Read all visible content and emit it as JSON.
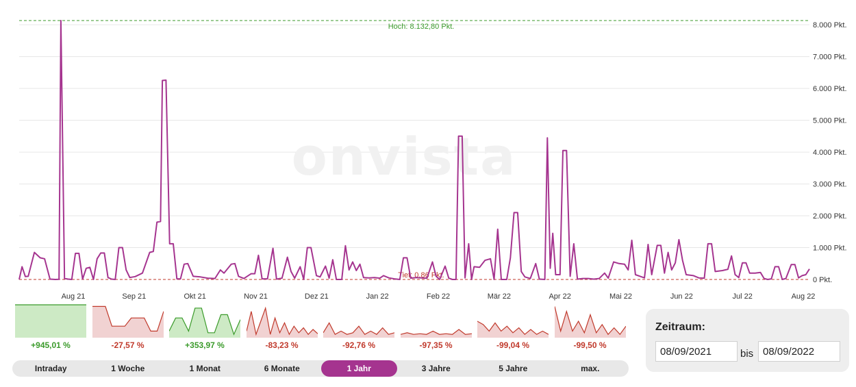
{
  "chart_data": {
    "type": "line",
    "watermark": "onvista",
    "y_ticks": [
      "8.000 Pkt.",
      "7.000 Pkt.",
      "6.000 Pkt.",
      "5.000 Pkt.",
      "4.000 Pkt.",
      "3.000 Pkt.",
      "2.000 Pkt.",
      "1.000 Pkt.",
      "0 Pkt."
    ],
    "y_tick_values": [
      8000,
      7000,
      6000,
      5000,
      4000,
      3000,
      2000,
      1000,
      0
    ],
    "ylim": [
      0,
      8132.8
    ],
    "x_ticks": [
      "Aug 21",
      "Sep 21",
      "Okt 21",
      "Nov 21",
      "Dez 21",
      "Jan 22",
      "Feb 22",
      "Mär 22",
      "Apr 22",
      "Mai 22",
      "Jun 22",
      "Jul 22",
      "Aug 22"
    ],
    "high_label": "Hoch: 8.132,80 Pkt.",
    "low_label": "Tief: 0,86 Pkt.",
    "high_value": 8132.8,
    "low_value": 0.86,
    "line_color": "#a5348f",
    "high_color": "#3a9a2a",
    "low_color": "#c0392b",
    "series": [
      {
        "x": 0,
        "y": 0
      },
      {
        "x": 0.08,
        "y": 400
      },
      {
        "x": 0.17,
        "y": 90
      },
      {
        "x": 0.25,
        "y": 100
      },
      {
        "x": 0.42,
        "y": 850
      },
      {
        "x": 0.58,
        "y": 680
      },
      {
        "x": 0.7,
        "y": 650
      },
      {
        "x": 0.85,
        "y": 10
      },
      {
        "x": 1.0,
        "y": 0
      },
      {
        "x": 1.1,
        "y": 5
      },
      {
        "x": 1.15,
        "y": 8132.8
      },
      {
        "x": 1.25,
        "y": 30
      },
      {
        "x": 1.35,
        "y": 10
      },
      {
        "x": 1.45,
        "y": 0
      },
      {
        "x": 1.55,
        "y": 820
      },
      {
        "x": 1.65,
        "y": 820
      },
      {
        "x": 1.75,
        "y": 10
      },
      {
        "x": 1.85,
        "y": 350
      },
      {
        "x": 1.95,
        "y": 380
      },
      {
        "x": 2.05,
        "y": 0
      },
      {
        "x": 2.15,
        "y": 650
      },
      {
        "x": 2.25,
        "y": 830
      },
      {
        "x": 2.35,
        "y": 830
      },
      {
        "x": 2.45,
        "y": 60
      },
      {
        "x": 2.55,
        "y": 10
      },
      {
        "x": 2.65,
        "y": 0
      },
      {
        "x": 2.75,
        "y": 1000
      },
      {
        "x": 2.85,
        "y": 1000
      },
      {
        "x": 2.95,
        "y": 300
      },
      {
        "x": 3.05,
        "y": 60
      },
      {
        "x": 3.2,
        "y": 90
      },
      {
        "x": 3.4,
        "y": 200
      },
      {
        "x": 3.6,
        "y": 850
      },
      {
        "x": 3.7,
        "y": 880
      },
      {
        "x": 3.8,
        "y": 1800
      },
      {
        "x": 3.9,
        "y": 1820
      },
      {
        "x": 3.95,
        "y": 6250
      },
      {
        "x": 4.05,
        "y": 6260
      },
      {
        "x": 4.15,
        "y": 1120
      },
      {
        "x": 4.25,
        "y": 1120
      },
      {
        "x": 4.35,
        "y": 20
      },
      {
        "x": 4.45,
        "y": 20
      },
      {
        "x": 4.55,
        "y": 480
      },
      {
        "x": 4.65,
        "y": 500
      },
      {
        "x": 4.8,
        "y": 100
      },
      {
        "x": 5.0,
        "y": 80
      },
      {
        "x": 5.2,
        "y": 40
      },
      {
        "x": 5.4,
        "y": 30
      },
      {
        "x": 5.55,
        "y": 300
      },
      {
        "x": 5.65,
        "y": 200
      },
      {
        "x": 5.85,
        "y": 480
      },
      {
        "x": 5.95,
        "y": 500
      },
      {
        "x": 6.05,
        "y": 100
      },
      {
        "x": 6.2,
        "y": 30
      },
      {
        "x": 6.4,
        "y": 180
      },
      {
        "x": 6.5,
        "y": 180
      },
      {
        "x": 6.6,
        "y": 760
      },
      {
        "x": 6.7,
        "y": 20
      },
      {
        "x": 6.85,
        "y": 20
      },
      {
        "x": 7.0,
        "y": 980
      },
      {
        "x": 7.1,
        "y": 10
      },
      {
        "x": 7.25,
        "y": 40
      },
      {
        "x": 7.4,
        "y": 700
      },
      {
        "x": 7.5,
        "y": 250
      },
      {
        "x": 7.6,
        "y": 40
      },
      {
        "x": 7.75,
        "y": 400
      },
      {
        "x": 7.85,
        "y": 0
      },
      {
        "x": 7.95,
        "y": 1000
      },
      {
        "x": 8.05,
        "y": 1000
      },
      {
        "x": 8.2,
        "y": 120
      },
      {
        "x": 8.3,
        "y": 80
      },
      {
        "x": 8.45,
        "y": 420
      },
      {
        "x": 8.55,
        "y": 40
      },
      {
        "x": 8.65,
        "y": 620
      },
      {
        "x": 8.75,
        "y": 0
      },
      {
        "x": 8.9,
        "y": 0
      },
      {
        "x": 9.0,
        "y": 1060
      },
      {
        "x": 9.1,
        "y": 300
      },
      {
        "x": 9.2,
        "y": 550
      },
      {
        "x": 9.3,
        "y": 280
      },
      {
        "x": 9.4,
        "y": 480
      },
      {
        "x": 9.5,
        "y": 60
      },
      {
        "x": 9.65,
        "y": 50
      },
      {
        "x": 9.8,
        "y": 60
      },
      {
        "x": 9.95,
        "y": 40
      },
      {
        "x": 10.05,
        "y": 120
      },
      {
        "x": 10.2,
        "y": 50
      },
      {
        "x": 10.35,
        "y": 20
      },
      {
        "x": 10.5,
        "y": 0
      },
      {
        "x": 10.6,
        "y": 680
      },
      {
        "x": 10.7,
        "y": 680
      },
      {
        "x": 10.8,
        "y": 40
      },
      {
        "x": 10.95,
        "y": 60
      },
      {
        "x": 11.1,
        "y": 50
      },
      {
        "x": 11.25,
        "y": 40
      },
      {
        "x": 11.4,
        "y": 550
      },
      {
        "x": 11.5,
        "y": 100
      },
      {
        "x": 11.6,
        "y": 0
      },
      {
        "x": 11.75,
        "y": 420
      },
      {
        "x": 11.85,
        "y": 40
      },
      {
        "x": 11.95,
        "y": 0
      },
      {
        "x": 12.05,
        "y": 0
      },
      {
        "x": 12.12,
        "y": 4500
      },
      {
        "x": 12.22,
        "y": 4500
      },
      {
        "x": 12.3,
        "y": 50
      },
      {
        "x": 12.4,
        "y": 1120
      },
      {
        "x": 12.48,
        "y": 0
      },
      {
        "x": 12.55,
        "y": 400
      },
      {
        "x": 12.7,
        "y": 380
      },
      {
        "x": 12.85,
        "y": 600
      },
      {
        "x": 13.0,
        "y": 650
      },
      {
        "x": 13.1,
        "y": 0
      },
      {
        "x": 13.2,
        "y": 1580
      },
      {
        "x": 13.3,
        "y": 0
      },
      {
        "x": 13.45,
        "y": 0
      },
      {
        "x": 13.55,
        "y": 680
      },
      {
        "x": 13.65,
        "y": 2100
      },
      {
        "x": 13.75,
        "y": 2100
      },
      {
        "x": 13.85,
        "y": 250
      },
      {
        "x": 13.95,
        "y": 80
      },
      {
        "x": 14.1,
        "y": 30
      },
      {
        "x": 14.25,
        "y": 500
      },
      {
        "x": 14.35,
        "y": 10
      },
      {
        "x": 14.5,
        "y": 0
      },
      {
        "x": 14.57,
        "y": 4450
      },
      {
        "x": 14.65,
        "y": 350
      },
      {
        "x": 14.72,
        "y": 1450
      },
      {
        "x": 14.8,
        "y": 150
      },
      {
        "x": 14.92,
        "y": 150
      },
      {
        "x": 15.0,
        "y": 4050
      },
      {
        "x": 15.1,
        "y": 4050
      },
      {
        "x": 15.2,
        "y": 100
      },
      {
        "x": 15.3,
        "y": 1120
      },
      {
        "x": 15.4,
        "y": 10
      },
      {
        "x": 15.55,
        "y": 30
      },
      {
        "x": 15.7,
        "y": 30
      },
      {
        "x": 15.85,
        "y": 10
      },
      {
        "x": 16.0,
        "y": 30
      },
      {
        "x": 16.15,
        "y": 200
      },
      {
        "x": 16.25,
        "y": 40
      },
      {
        "x": 16.4,
        "y": 550
      },
      {
        "x": 16.55,
        "y": 500
      },
      {
        "x": 16.7,
        "y": 480
      },
      {
        "x": 16.8,
        "y": 300
      },
      {
        "x": 16.9,
        "y": 1230
      },
      {
        "x": 17.0,
        "y": 150
      },
      {
        "x": 17.15,
        "y": 90
      },
      {
        "x": 17.25,
        "y": 50
      },
      {
        "x": 17.35,
        "y": 1100
      },
      {
        "x": 17.45,
        "y": 150
      },
      {
        "x": 17.6,
        "y": 1070
      },
      {
        "x": 17.7,
        "y": 1070
      },
      {
        "x": 17.8,
        "y": 200
      },
      {
        "x": 17.9,
        "y": 850
      },
      {
        "x": 18.0,
        "y": 300
      },
      {
        "x": 18.1,
        "y": 520
      },
      {
        "x": 18.2,
        "y": 1250
      },
      {
        "x": 18.3,
        "y": 600
      },
      {
        "x": 18.4,
        "y": 150
      },
      {
        "x": 18.6,
        "y": 120
      },
      {
        "x": 18.75,
        "y": 50
      },
      {
        "x": 18.9,
        "y": 40
      },
      {
        "x": 19.0,
        "y": 1120
      },
      {
        "x": 19.1,
        "y": 1120
      },
      {
        "x": 19.2,
        "y": 250
      },
      {
        "x": 19.4,
        "y": 280
      },
      {
        "x": 19.55,
        "y": 320
      },
      {
        "x": 19.65,
        "y": 740
      },
      {
        "x": 19.75,
        "y": 150
      },
      {
        "x": 19.85,
        "y": 60
      },
      {
        "x": 19.95,
        "y": 520
      },
      {
        "x": 20.05,
        "y": 520
      },
      {
        "x": 20.15,
        "y": 200
      },
      {
        "x": 20.3,
        "y": 200
      },
      {
        "x": 20.45,
        "y": 220
      },
      {
        "x": 20.55,
        "y": 30
      },
      {
        "x": 20.65,
        "y": 0
      },
      {
        "x": 20.75,
        "y": 20
      },
      {
        "x": 20.85,
        "y": 400
      },
      {
        "x": 20.95,
        "y": 400
      },
      {
        "x": 21.05,
        "y": 0
      },
      {
        "x": 21.15,
        "y": 30
      },
      {
        "x": 21.3,
        "y": 470
      },
      {
        "x": 21.4,
        "y": 470
      },
      {
        "x": 21.5,
        "y": 50
      },
      {
        "x": 21.6,
        "y": 120
      },
      {
        "x": 21.7,
        "y": 150
      },
      {
        "x": 21.8,
        "y": 330
      }
    ]
  },
  "mini_charts": [
    {
      "label": "+945,01 %",
      "positive": true,
      "values": [
        1,
        1
      ]
    },
    {
      "label": "-27,57 %",
      "positive": false,
      "values": [
        0.95,
        0.95,
        0.95,
        0.35,
        0.35,
        0.35,
        0.6,
        0.6,
        0.6,
        0.2,
        0.2,
        0.8
      ]
    },
    {
      "label": "+353,97 %",
      "positive": true,
      "values": [
        0.2,
        0.6,
        0.6,
        0.2,
        0.9,
        0.9,
        0.15,
        0.15,
        0.7,
        0.7,
        0.1,
        0.55
      ]
    },
    {
      "label": "-83,23 %",
      "positive": false,
      "values": [
        0.2,
        0.8,
        0.1,
        0.5,
        0.9,
        0.1,
        0.6,
        0.15,
        0.45,
        0.1,
        0.35,
        0.15,
        0.3,
        0.1,
        0.25,
        0.12
      ]
    },
    {
      "label": "-92,76 %",
      "positive": false,
      "values": [
        0.15,
        0.45,
        0.1,
        0.2,
        0.1,
        0.15,
        0.35,
        0.1,
        0.2,
        0.1,
        0.3,
        0.1,
        0.15
      ]
    },
    {
      "label": "-97,35 %",
      "positive": false,
      "values": [
        0.1,
        0.15,
        0.1,
        0.12,
        0.1,
        0.2,
        0.1,
        0.12,
        0.1,
        0.25,
        0.1,
        0.12
      ]
    },
    {
      "label": "-99,04 %",
      "positive": false,
      "values": [
        0.5,
        0.4,
        0.2,
        0.45,
        0.2,
        0.35,
        0.15,
        0.3,
        0.1,
        0.25,
        0.1,
        0.2,
        0.1
      ]
    },
    {
      "label": "-99,50 %",
      "positive": false,
      "values": [
        0.95,
        0.2,
        0.8,
        0.2,
        0.5,
        0.15,
        0.7,
        0.15,
        0.4,
        0.1,
        0.3,
        0.1,
        0.35
      ]
    }
  ],
  "range_buttons": [
    {
      "label": "Intraday",
      "active": false
    },
    {
      "label": "1 Woche",
      "active": false
    },
    {
      "label": "1 Monat",
      "active": false
    },
    {
      "label": "6 Monate",
      "active": false
    },
    {
      "label": "1 Jahr",
      "active": true
    },
    {
      "label": "3 Jahre",
      "active": false
    },
    {
      "label": "5 Jahre",
      "active": false
    },
    {
      "label": "max.",
      "active": false
    }
  ],
  "zeitraum": {
    "title": "Zeitraum:",
    "from": "08/09/2021",
    "separator": "bis",
    "to": "08/09/2022"
  },
  "colors": {
    "accent": "#a5348f",
    "positive": "#3a9a2a",
    "positive_fill": "#cdeac5",
    "negative": "#c0392b",
    "negative_fill": "#f1d2d2"
  }
}
